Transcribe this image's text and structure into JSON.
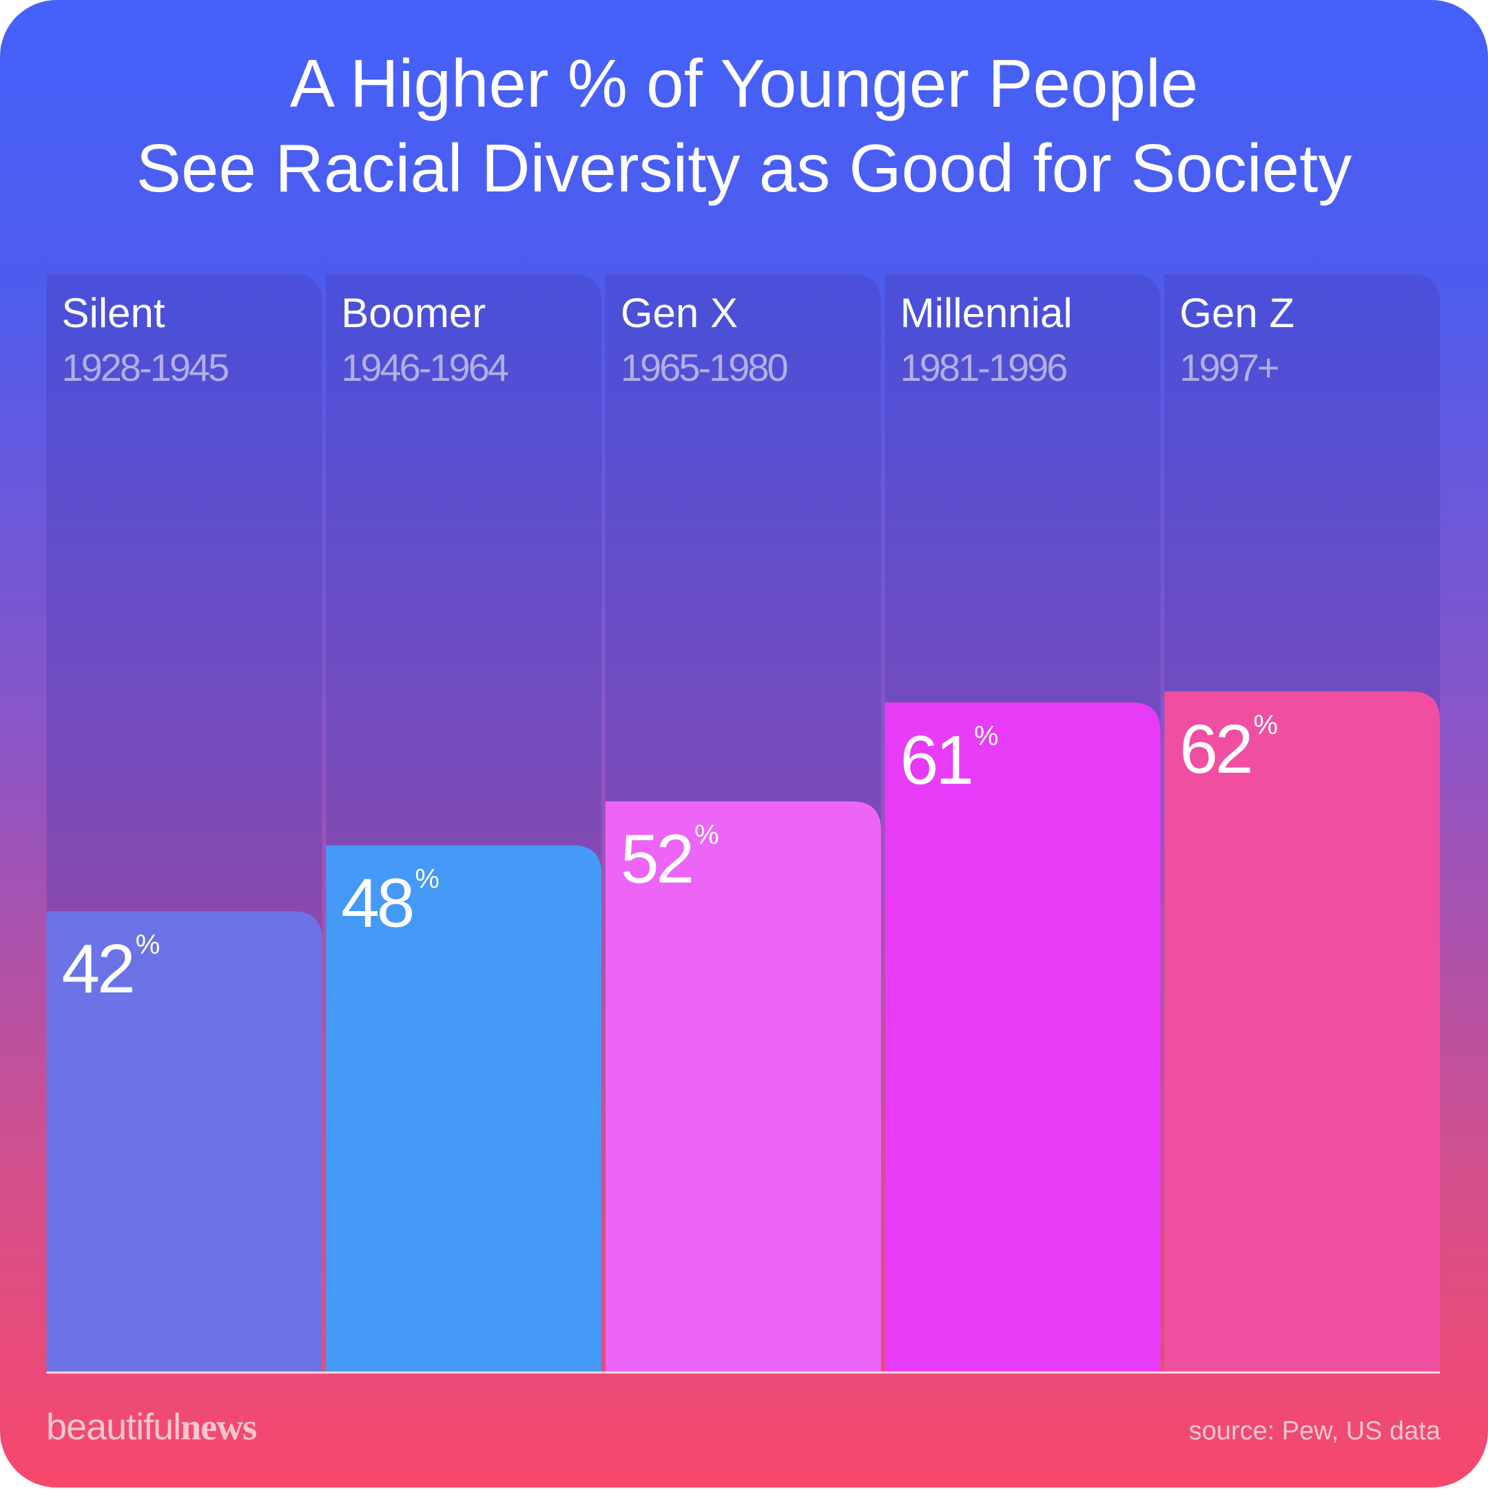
{
  "chart_data": {
    "type": "bar",
    "title": [
      "A Higher % of Younger People",
      "See Racial Diversity as Good for Society"
    ],
    "categories": [
      "Silent",
      "Boomer",
      "Gen X",
      "Millennial",
      "Gen Z"
    ],
    "category_years": [
      "1928-1945",
      "1946-1964",
      "1965-1980",
      "1981-1996",
      "1997+"
    ],
    "values": [
      42,
      48,
      52,
      61,
      62
    ],
    "value_unit": "%",
    "colors": [
      "#6b73e6",
      "#4599f7",
      "#ec65f7",
      "#e83bf7",
      "#f04fa1"
    ],
    "ylim": [
      0,
      100
    ]
  },
  "footer": {
    "brand_light": "beautiful",
    "brand_bold": "news",
    "source": "source: Pew, US data"
  }
}
